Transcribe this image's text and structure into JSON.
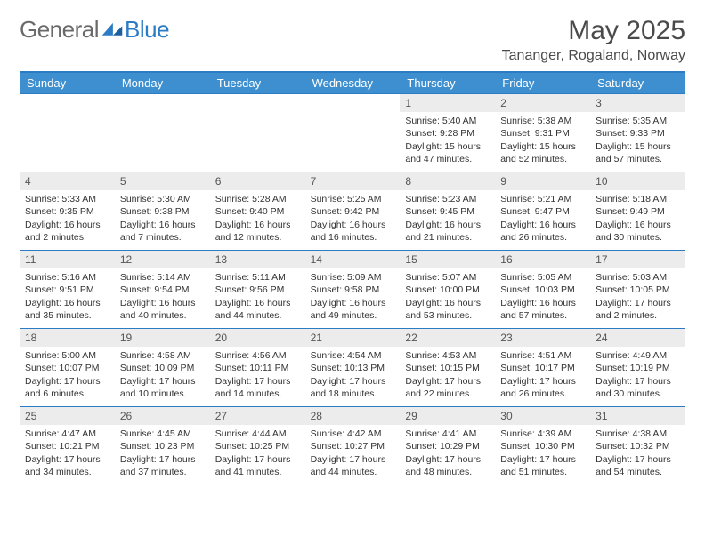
{
  "brand": {
    "part1": "General",
    "part2": "Blue"
  },
  "title": "May 2025",
  "location": "Tananger, Rogaland, Norway",
  "colors": {
    "header_bg": "#3d8fcf",
    "border": "#2c7cc4",
    "daynum_bg": "#ececec",
    "text": "#333333",
    "title_color": "#4a4a4a",
    "logo_gray": "#6a6a6a"
  },
  "weekdays": [
    "Sunday",
    "Monday",
    "Tuesday",
    "Wednesday",
    "Thursday",
    "Friday",
    "Saturday"
  ],
  "calendar": {
    "first_weekday_index": 4,
    "num_days": 31
  },
  "days": {
    "1": {
      "sunrise": "5:40 AM",
      "sunset": "9:28 PM",
      "daylight": "15 hours and 47 minutes."
    },
    "2": {
      "sunrise": "5:38 AM",
      "sunset": "9:31 PM",
      "daylight": "15 hours and 52 minutes."
    },
    "3": {
      "sunrise": "5:35 AM",
      "sunset": "9:33 PM",
      "daylight": "15 hours and 57 minutes."
    },
    "4": {
      "sunrise": "5:33 AM",
      "sunset": "9:35 PM",
      "daylight": "16 hours and 2 minutes."
    },
    "5": {
      "sunrise": "5:30 AM",
      "sunset": "9:38 PM",
      "daylight": "16 hours and 7 minutes."
    },
    "6": {
      "sunrise": "5:28 AM",
      "sunset": "9:40 PM",
      "daylight": "16 hours and 12 minutes."
    },
    "7": {
      "sunrise": "5:25 AM",
      "sunset": "9:42 PM",
      "daylight": "16 hours and 16 minutes."
    },
    "8": {
      "sunrise": "5:23 AM",
      "sunset": "9:45 PM",
      "daylight": "16 hours and 21 minutes."
    },
    "9": {
      "sunrise": "5:21 AM",
      "sunset": "9:47 PM",
      "daylight": "16 hours and 26 minutes."
    },
    "10": {
      "sunrise": "5:18 AM",
      "sunset": "9:49 PM",
      "daylight": "16 hours and 30 minutes."
    },
    "11": {
      "sunrise": "5:16 AM",
      "sunset": "9:51 PM",
      "daylight": "16 hours and 35 minutes."
    },
    "12": {
      "sunrise": "5:14 AM",
      "sunset": "9:54 PM",
      "daylight": "16 hours and 40 minutes."
    },
    "13": {
      "sunrise": "5:11 AM",
      "sunset": "9:56 PM",
      "daylight": "16 hours and 44 minutes."
    },
    "14": {
      "sunrise": "5:09 AM",
      "sunset": "9:58 PM",
      "daylight": "16 hours and 49 minutes."
    },
    "15": {
      "sunrise": "5:07 AM",
      "sunset": "10:00 PM",
      "daylight": "16 hours and 53 minutes."
    },
    "16": {
      "sunrise": "5:05 AM",
      "sunset": "10:03 PM",
      "daylight": "16 hours and 57 minutes."
    },
    "17": {
      "sunrise": "5:03 AM",
      "sunset": "10:05 PM",
      "daylight": "17 hours and 2 minutes."
    },
    "18": {
      "sunrise": "5:00 AM",
      "sunset": "10:07 PM",
      "daylight": "17 hours and 6 minutes."
    },
    "19": {
      "sunrise": "4:58 AM",
      "sunset": "10:09 PM",
      "daylight": "17 hours and 10 minutes."
    },
    "20": {
      "sunrise": "4:56 AM",
      "sunset": "10:11 PM",
      "daylight": "17 hours and 14 minutes."
    },
    "21": {
      "sunrise": "4:54 AM",
      "sunset": "10:13 PM",
      "daylight": "17 hours and 18 minutes."
    },
    "22": {
      "sunrise": "4:53 AM",
      "sunset": "10:15 PM",
      "daylight": "17 hours and 22 minutes."
    },
    "23": {
      "sunrise": "4:51 AM",
      "sunset": "10:17 PM",
      "daylight": "17 hours and 26 minutes."
    },
    "24": {
      "sunrise": "4:49 AM",
      "sunset": "10:19 PM",
      "daylight": "17 hours and 30 minutes."
    },
    "25": {
      "sunrise": "4:47 AM",
      "sunset": "10:21 PM",
      "daylight": "17 hours and 34 minutes."
    },
    "26": {
      "sunrise": "4:45 AM",
      "sunset": "10:23 PM",
      "daylight": "17 hours and 37 minutes."
    },
    "27": {
      "sunrise": "4:44 AM",
      "sunset": "10:25 PM",
      "daylight": "17 hours and 41 minutes."
    },
    "28": {
      "sunrise": "4:42 AM",
      "sunset": "10:27 PM",
      "daylight": "17 hours and 44 minutes."
    },
    "29": {
      "sunrise": "4:41 AM",
      "sunset": "10:29 PM",
      "daylight": "17 hours and 48 minutes."
    },
    "30": {
      "sunrise": "4:39 AM",
      "sunset": "10:30 PM",
      "daylight": "17 hours and 51 minutes."
    },
    "31": {
      "sunrise": "4:38 AM",
      "sunset": "10:32 PM",
      "daylight": "17 hours and 54 minutes."
    }
  },
  "labels": {
    "sunrise": "Sunrise: ",
    "sunset": "Sunset: ",
    "daylight": "Daylight: "
  }
}
